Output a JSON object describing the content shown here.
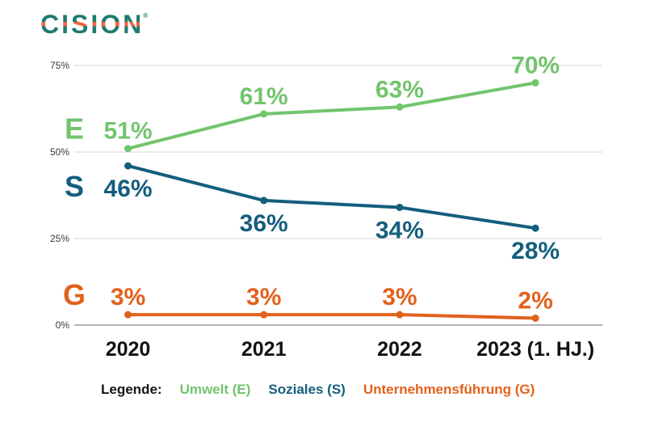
{
  "logo": {
    "text": "CISION",
    "registered": "®",
    "teal": "#1E7B6F",
    "orange": "#F4623E"
  },
  "chart_data": {
    "type": "line",
    "title": "",
    "categories": [
      "2020",
      "2021",
      "2022",
      "2023 (1. HJ.)"
    ],
    "series": [
      {
        "name": "Umwelt (E)",
        "letter": "E",
        "color": "#72C46D",
        "values": [
          51,
          61,
          63,
          70
        ],
        "label_position": "above"
      },
      {
        "name": "Soziales (S)",
        "letter": "S",
        "color": "#145E7E",
        "values": [
          46,
          36,
          34,
          28
        ],
        "label_position": "below"
      },
      {
        "name": "Unternehmensführung (G)",
        "letter": "G",
        "color": "#E2611C",
        "values": [
          3,
          3,
          3,
          2
        ],
        "label_position": "above"
      }
    ],
    "y_ticks": [
      75,
      50,
      25,
      0
    ],
    "y_tick_labels": [
      "75%",
      "50%",
      "25%",
      "0%"
    ],
    "ylim": [
      0,
      80
    ],
    "grid": true,
    "value_label_format": "{v}%",
    "legend_position": "bottom",
    "grid_color": "#DCDCDC",
    "zero_line_color": "#9A9A9A"
  },
  "legend": {
    "label": "Legende:",
    "items": [
      {
        "label": "Umwelt (E)",
        "color": "#72C46D"
      },
      {
        "label": "Soziales (S)",
        "color": "#145E7E"
      },
      {
        "label": "Unternehmensführung (G)",
        "color": "#E2611C"
      }
    ]
  }
}
